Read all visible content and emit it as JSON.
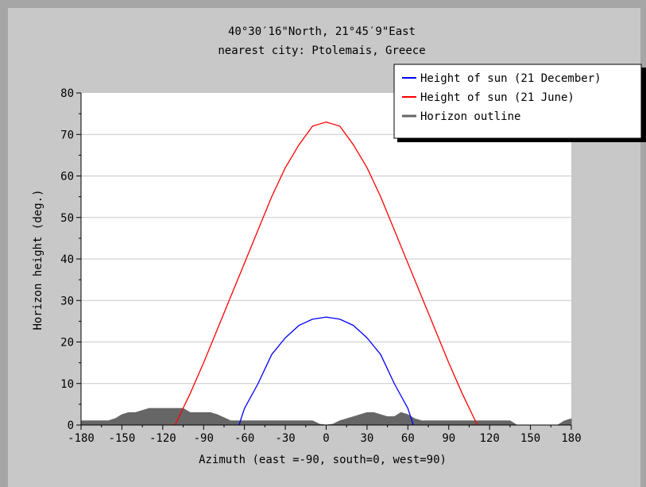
{
  "header": {
    "line1": "40°30′16\"North, 21°45′9\"East",
    "line2": "nearest city: Ptolemais, Greece"
  },
  "colors": {
    "panel": "#c8c8c8",
    "plot_bg": "#ffffff",
    "grid": "#c8c8c8",
    "december": "#0000ff",
    "june": "#ff0000",
    "horizon": "#666666"
  },
  "chart_data": {
    "type": "line",
    "xlabel": "Azimuth (east =-90, south=0, west=90)",
    "ylabel": "Horizon height (deg.)",
    "xlim": [
      -180,
      180
    ],
    "ylim": [
      0,
      80
    ],
    "x_ticks": [
      -180,
      -150,
      -120,
      -90,
      -60,
      -30,
      0,
      30,
      60,
      90,
      120,
      150,
      180
    ],
    "y_ticks": [
      0,
      10,
      20,
      30,
      40,
      50,
      60,
      70,
      80
    ],
    "grid": true,
    "legend_position": "top-right",
    "series": [
      {
        "name": "Height of sun (21 December)",
        "color": "#0000ff",
        "x": [
          -64,
          -60,
          -50,
          -40,
          -30,
          -20,
          -10,
          0,
          10,
          20,
          30,
          40,
          50,
          60,
          64
        ],
        "y": [
          0,
          4,
          10,
          17,
          21,
          24,
          25.5,
          26,
          25.5,
          24,
          21,
          17,
          10,
          4,
          0
        ]
      },
      {
        "name": "Height of sun (21 June)",
        "color": "#ff0000",
        "x": [
          -111,
          -100,
          -90,
          -80,
          -70,
          -60,
          -50,
          -40,
          -30,
          -20,
          -10,
          -5,
          0,
          5,
          10,
          20,
          30,
          40,
          50,
          60,
          70,
          80,
          90,
          100,
          111
        ],
        "y": [
          0,
          7.5,
          15,
          23,
          31,
          39,
          47,
          55,
          62,
          67.5,
          72,
          72.5,
          73,
          72.5,
          72,
          67.5,
          62,
          55,
          47,
          39,
          31,
          23,
          15,
          7.5,
          0
        ]
      },
      {
        "name": "Horizon outline",
        "color": "#666666",
        "type": "area",
        "x": [
          -180,
          -160,
          -155,
          -150,
          -145,
          -140,
          -135,
          -130,
          -125,
          -120,
          -115,
          -110,
          -105,
          -100,
          -90,
          -85,
          -80,
          -70,
          -60,
          -50,
          -40,
          -30,
          -20,
          -10,
          -5,
          0,
          5,
          10,
          20,
          30,
          35,
          40,
          45,
          50,
          55,
          60,
          65,
          70,
          80,
          90,
          100,
          110,
          120,
          130,
          135,
          140,
          150,
          160,
          170,
          175,
          180
        ],
        "y": [
          1,
          1,
          1.5,
          2.5,
          3,
          3,
          3.5,
          4,
          4,
          4,
          4,
          4,
          4,
          3,
          3,
          3,
          2.5,
          1,
          1,
          1,
          1,
          1,
          1,
          1,
          0.2,
          0,
          0.2,
          1,
          2,
          3,
          3,
          2.5,
          2,
          2,
          3,
          2.5,
          1.5,
          1,
          1,
          1,
          1,
          1,
          1,
          1,
          1,
          0,
          0,
          0,
          0,
          1,
          1.5
        ]
      }
    ]
  }
}
